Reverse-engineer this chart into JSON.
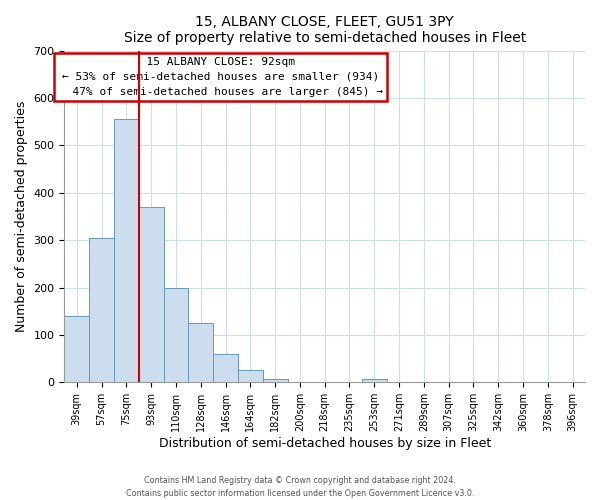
{
  "title": "15, ALBANY CLOSE, FLEET, GU51 3PY",
  "subtitle": "Size of property relative to semi-detached houses in Fleet",
  "xlabel": "Distribution of semi-detached houses by size in Fleet",
  "ylabel": "Number of semi-detached properties",
  "bar_labels": [
    "39sqm",
    "57sqm",
    "75sqm",
    "93sqm",
    "110sqm",
    "128sqm",
    "146sqm",
    "164sqm",
    "182sqm",
    "200sqm",
    "218sqm",
    "235sqm",
    "253sqm",
    "271sqm",
    "289sqm",
    "307sqm",
    "325sqm",
    "342sqm",
    "360sqm",
    "378sqm",
    "396sqm"
  ],
  "bar_values": [
    140,
    305,
    555,
    370,
    200,
    125,
    60,
    25,
    8,
    0,
    0,
    0,
    8,
    0,
    0,
    0,
    0,
    0,
    0,
    0,
    0
  ],
  "bar_color": "#ccdded",
  "bar_edge_color": "#6699bb",
  "property_line_label": "15 ALBANY CLOSE: 92sqm",
  "smaller_pct": 53,
  "smaller_count": 934,
  "larger_pct": 47,
  "larger_count": 845,
  "ylim": [
    0,
    700
  ],
  "yticks": [
    0,
    100,
    200,
    300,
    400,
    500,
    600,
    700
  ],
  "annotation_box_color": "#ffffff",
  "annotation_box_edge": "#cc0000",
  "line_color": "#cc0000",
  "grid_color": "#ccddee",
  "footer1": "Contains HM Land Registry data © Crown copyright and database right 2024.",
  "footer2": "Contains public sector information licensed under the Open Government Licence v3.0."
}
